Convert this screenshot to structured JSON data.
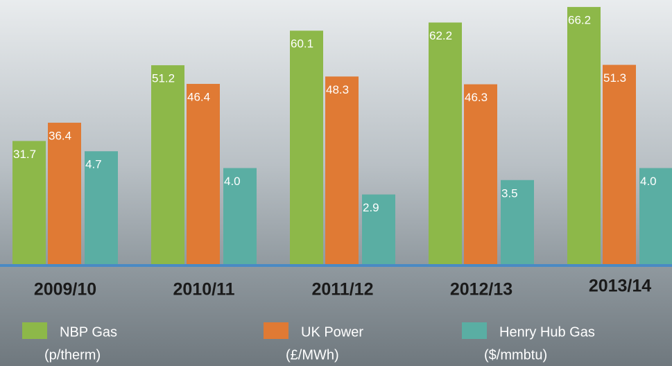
{
  "chart_data": {
    "type": "bar",
    "categories": [
      "2009/10",
      "2010/11",
      "2011/12",
      "2012/13",
      "2013/14"
    ],
    "series": [
      {
        "name": "NBP Gas",
        "unit": "(p/therm)",
        "color": "#8db849",
        "values": [
          31.7,
          51.2,
          60.1,
          62.2,
          66.2
        ]
      },
      {
        "name": "UK Power",
        "unit": "(£/MWh)",
        "color": "#e07a34",
        "values": [
          36.4,
          46.4,
          48.3,
          46.3,
          51.3
        ]
      },
      {
        "name": "Henry Hub Gas",
        "unit": "($/mmbtu)",
        "color": "#5aaea3",
        "axis": "y2",
        "values": [
          4.7,
          4.0,
          2.9,
          3.5,
          4.0
        ],
        "value_labels": [
          "4.7",
          "4.0",
          "2.9",
          "3.5",
          "4.0"
        ]
      }
    ],
    "ylim": [
      0,
      68
    ],
    "y2lim": [
      0,
      11
    ]
  }
}
